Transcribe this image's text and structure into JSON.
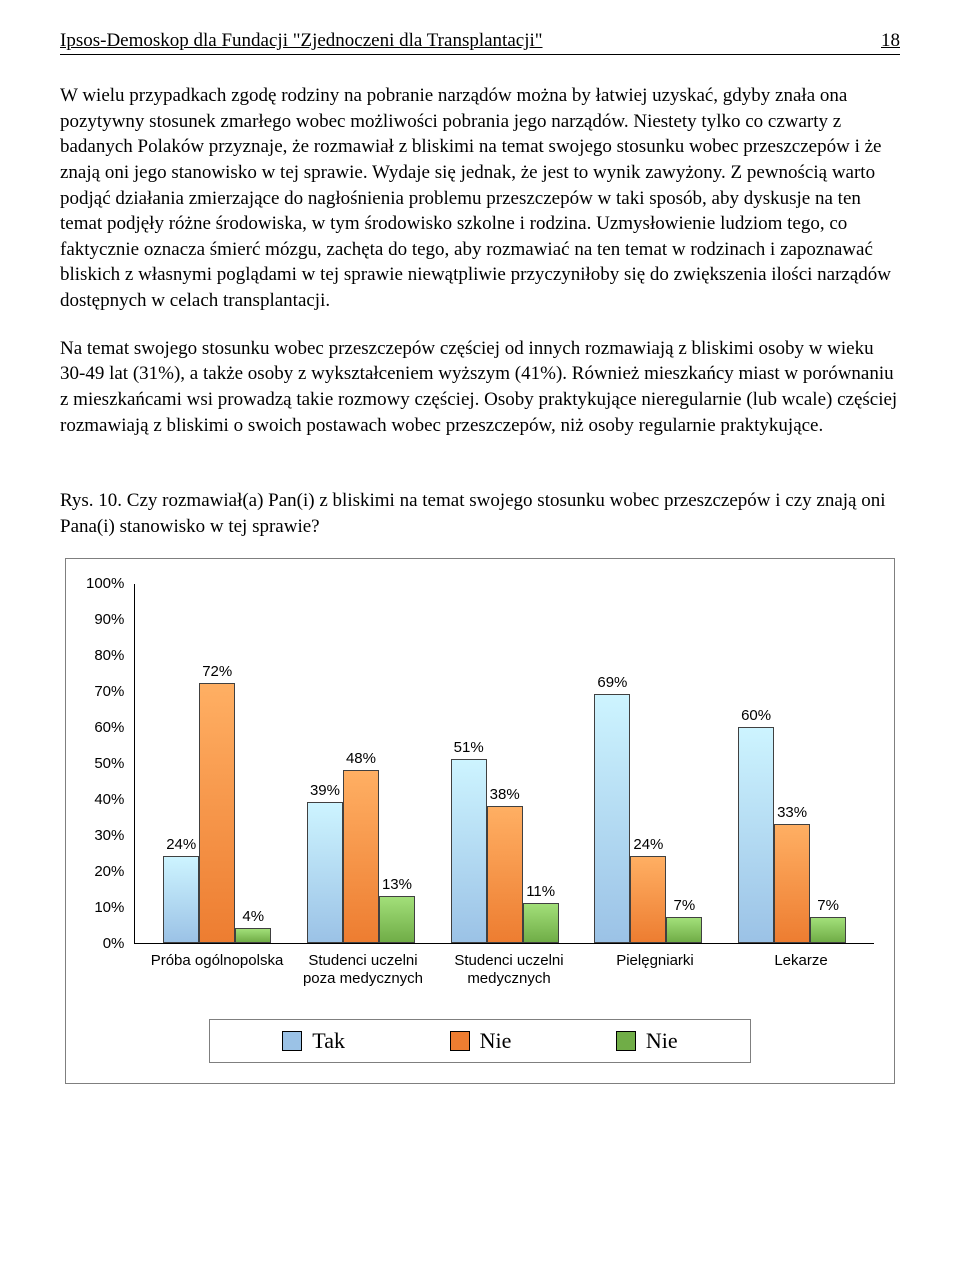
{
  "header": {
    "title": "Ipsos-Demoskop dla Fundacji \"Zjednoczeni dla Transplantacji\"",
    "page_num": "18"
  },
  "paragraphs": {
    "p1": "W wielu przypadkach zgodę rodziny na pobranie narządów można by łatwiej uzyskać, gdyby znała ona pozytywny stosunek zmarłego wobec możliwości pobrania jego narządów. Niestety tylko co czwarty z badanych Polaków przyznaje, że rozmawiał z bliskimi na temat swojego stosunku wobec przeszczepów i że znają oni jego stanowisko w tej sprawie. Wydaje się jednak, że jest to wynik zawyżony. Z pewnością warto podjąć działania zmierzające do nagłośnienia problemu przeszczepów w taki sposób, aby dyskusje na ten temat podjęły różne środowiska, w tym środowisko szkolne i rodzina. Uzmysłowienie ludziom tego, co faktycznie oznacza śmierć mózgu, zachęta do tego, aby rozmawiać na ten temat w rodzinach i zapoznawać bliskich z własnymi poglądami w tej sprawie niewątpliwie przyczyniłoby się do zwiększenia ilości narządów dostępnych w celach transplantacji.",
    "p2": "Na temat swojego stosunku wobec przeszczepów częściej od innych rozmawiają z bliskimi osoby w wieku 30-49 lat (31%), a także osoby z wykształceniem wyższym (41%). Również mieszkańcy miast w porównaniu z mieszkańcami wsi prowadzą takie rozmowy częściej. Osoby praktykujące nieregularnie (lub wcale) częściej rozmawiają z bliskimi o swoich postawach wobec przeszczepów, niż osoby regularnie praktykujące.",
    "caption": "Rys. 10. Czy rozmawiał(a) Pan(i) z bliskimi na temat swojego stosunku wobec przeszczepów i czy znają oni Pana(i) stanowisko w tej sprawie?"
  },
  "chart": {
    "type": "grouped-bar",
    "ylim": [
      0,
      100
    ],
    "ytick_step": 10,
    "yticks": [
      "100%",
      "90%",
      "80%",
      "70%",
      "60%",
      "50%",
      "40%",
      "30%",
      "20%",
      "10%",
      "0%"
    ],
    "categories": [
      "Próba ogólnopolska",
      "Studenci uczelni poza medycznych",
      "Studenci uczelni medycznych",
      "Pielęgniarki",
      "Lekarze"
    ],
    "series_colors": [
      "#9bc2e6",
      "#ed7d31",
      "#70ad47"
    ],
    "series_border": "#404040",
    "groups": [
      {
        "vals": [
          24,
          72,
          4
        ],
        "labels": [
          "24%",
          "72%",
          "4%"
        ]
      },
      {
        "vals": [
          39,
          48,
          13
        ],
        "labels": [
          "39%",
          "48%",
          "13%"
        ]
      },
      {
        "vals": [
          51,
          38,
          11
        ],
        "labels": [
          "51%",
          "38%",
          "11%"
        ]
      },
      {
        "vals": [
          69,
          24,
          7
        ],
        "labels": [
          "69%",
          "24%",
          "7%"
        ]
      },
      {
        "vals": [
          60,
          33,
          7
        ],
        "labels": [
          "60%",
          "33%",
          "7%"
        ]
      }
    ],
    "legend": [
      "Tak",
      "Nie",
      "Nie"
    ]
  }
}
